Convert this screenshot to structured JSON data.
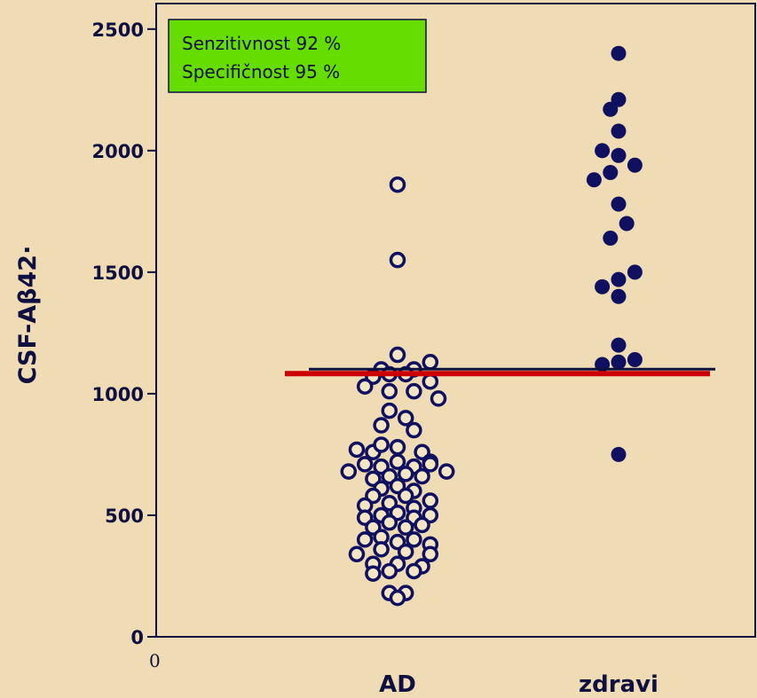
{
  "chart_data": {
    "type": "scatter",
    "title": "",
    "xlabel": "",
    "ylabel": "CSF-Aβ42·",
    "origin_label": "0",
    "ylim": [
      0,
      2600
    ],
    "yticks": [
      0,
      500,
      1000,
      1500,
      2000,
      2500
    ],
    "categories": [
      "AD",
      "zdravi"
    ],
    "annotation": {
      "lines": [
        "Senzitivnost 92 %",
        "Specifičnost 95 %"
      ],
      "background": "#66dd00",
      "border": "#101040"
    },
    "cutoff": {
      "value": 1090,
      "color": "#cc0000"
    },
    "series": [
      {
        "category": "AD",
        "marker": "open-circle",
        "color": "#101060",
        "points": [
          [
            0.0,
            1860
          ],
          [
            0.0,
            1550
          ],
          [
            0.0,
            1160
          ],
          [
            -0.1,
            1100
          ],
          [
            -0.15,
            1070
          ],
          [
            0.1,
            1100
          ],
          [
            0.2,
            1130
          ],
          [
            -0.05,
            1080
          ],
          [
            0.05,
            1080
          ],
          [
            -0.2,
            1030
          ],
          [
            -0.05,
            1010
          ],
          [
            0.1,
            1010
          ],
          [
            0.2,
            1050
          ],
          [
            0.25,
            980
          ],
          [
            -0.05,
            930
          ],
          [
            0.05,
            900
          ],
          [
            -0.1,
            870
          ],
          [
            0.1,
            850
          ],
          [
            -0.25,
            770
          ],
          [
            -0.15,
            760
          ],
          [
            -0.1,
            790
          ],
          [
            0.0,
            780
          ],
          [
            0.15,
            760
          ],
          [
            0.2,
            720
          ],
          [
            -0.3,
            680
          ],
          [
            -0.2,
            710
          ],
          [
            -0.1,
            700
          ],
          [
            0.0,
            720
          ],
          [
            0.1,
            700
          ],
          [
            0.2,
            710
          ],
          [
            0.3,
            680
          ],
          [
            -0.15,
            650
          ],
          [
            -0.05,
            660
          ],
          [
            0.05,
            670
          ],
          [
            0.15,
            660
          ],
          [
            -0.1,
            610
          ],
          [
            0.0,
            620
          ],
          [
            0.1,
            600
          ],
          [
            -0.15,
            580
          ],
          [
            0.05,
            580
          ],
          [
            0.2,
            560
          ],
          [
            -0.2,
            540
          ],
          [
            -0.05,
            550
          ],
          [
            0.1,
            530
          ],
          [
            -0.2,
            490
          ],
          [
            -0.1,
            500
          ],
          [
            0.0,
            510
          ],
          [
            0.1,
            490
          ],
          [
            0.2,
            500
          ],
          [
            -0.15,
            450
          ],
          [
            -0.05,
            470
          ],
          [
            0.05,
            450
          ],
          [
            0.15,
            460
          ],
          [
            -0.2,
            400
          ],
          [
            -0.1,
            410
          ],
          [
            0.0,
            390
          ],
          [
            0.1,
            400
          ],
          [
            0.2,
            380
          ],
          [
            -0.25,
            340
          ],
          [
            -0.1,
            360
          ],
          [
            0.05,
            350
          ],
          [
            0.2,
            340
          ],
          [
            -0.15,
            300
          ],
          [
            0.0,
            300
          ],
          [
            0.15,
            290
          ],
          [
            -0.15,
            260
          ],
          [
            -0.05,
            270
          ],
          [
            0.1,
            270
          ],
          [
            -0.05,
            180
          ],
          [
            0.05,
            180
          ],
          [
            0.0,
            160
          ]
        ]
      },
      {
        "category": "zdravi",
        "marker": "filled-circle",
        "color": "#101060",
        "points": [
          [
            0.0,
            2400
          ],
          [
            0.0,
            2210
          ],
          [
            -0.05,
            2170
          ],
          [
            0.0,
            2080
          ],
          [
            -0.1,
            2000
          ],
          [
            0.0,
            1980
          ],
          [
            0.1,
            1940
          ],
          [
            -0.05,
            1910
          ],
          [
            -0.15,
            1880
          ],
          [
            0.0,
            1780
          ],
          [
            0.05,
            1700
          ],
          [
            -0.05,
            1640
          ],
          [
            0.1,
            1500
          ],
          [
            0.0,
            1470
          ],
          [
            -0.1,
            1440
          ],
          [
            0.0,
            1400
          ],
          [
            0.0,
            1200
          ],
          [
            0.1,
            1140
          ],
          [
            -0.1,
            1120
          ],
          [
            0.0,
            1130
          ],
          [
            0.0,
            750
          ]
        ]
      }
    ]
  }
}
